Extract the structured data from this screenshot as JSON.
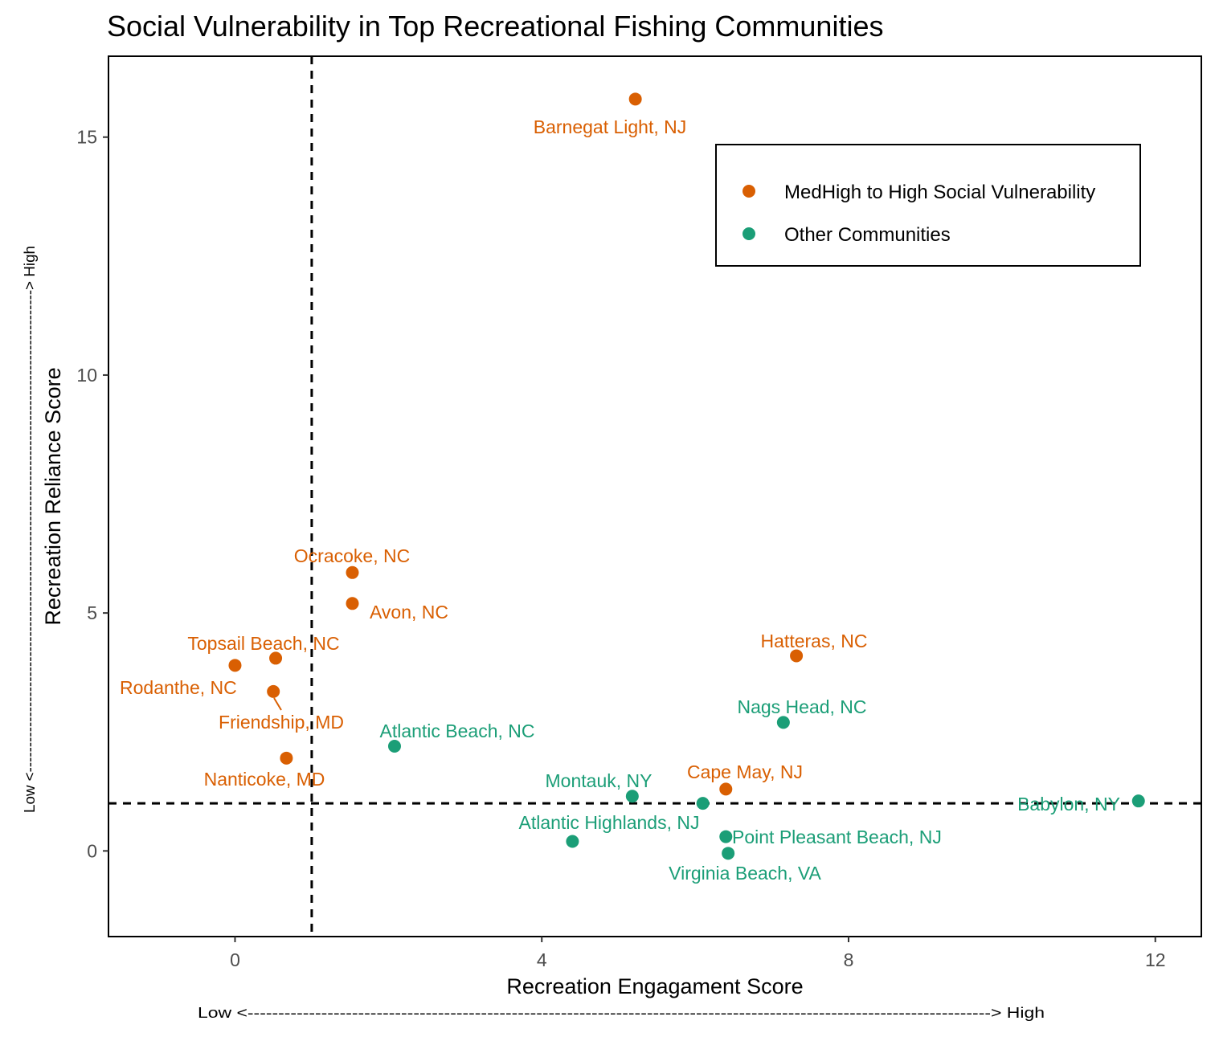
{
  "chart_data": {
    "type": "scatter",
    "title": "Social Vulnerability in Top Recreational Fishing Communities",
    "xlabel": "Recreation Engagament Score",
    "ylabel": "Recreation Reliance Score",
    "x_direction_note": "Low <-------------------------------------------------------------------------------------------------------------------------> High",
    "y_direction_note": "Low <------------------------------------------------------------------------------------------------> High",
    "xlim": [
      -1.65,
      12.6
    ],
    "ylim": [
      -1.8,
      16.7
    ],
    "x_ticks": [
      0,
      4,
      8,
      12
    ],
    "y_ticks": [
      0,
      5,
      10,
      15
    ],
    "x_tick_labels": [
      "0",
      "4",
      "8",
      "12"
    ],
    "y_tick_labels": [
      "0",
      "5",
      "10",
      "15"
    ],
    "grid": false,
    "reference_lines": {
      "x": 1,
      "y": 1,
      "style": "dashed"
    },
    "legend_position": "top-right",
    "colors": {
      "high_vulnerability": "#d95f02",
      "other": "#1b9e77"
    },
    "series": [
      {
        "name": "MedHigh to High Social Vulnerability",
        "color": "#d95f02",
        "points": [
          {
            "label": "Barnegat Light, NJ",
            "x": 5.22,
            "y": 15.8
          },
          {
            "label": "Ocracoke, NC",
            "x": 1.53,
            "y": 5.85
          },
          {
            "label": "Avon, NC",
            "x": 1.53,
            "y": 5.2
          },
          {
            "label": "Topsail Beach, NC",
            "x": 0.53,
            "y": 4.05
          },
          {
            "label": "Rodanthe, NC",
            "x": 0.0,
            "y": 3.9
          },
          {
            "label": "Friendship, MD",
            "x": 0.5,
            "y": 3.35
          },
          {
            "label": "Nanticoke, MD",
            "x": 0.67,
            "y": 1.95
          },
          {
            "label": "Hatteras, NC",
            "x": 7.32,
            "y": 4.1
          },
          {
            "label": "Cape May, NJ",
            "x": 6.4,
            "y": 1.3
          }
        ]
      },
      {
        "name": "Other Communities",
        "color": "#1b9e77",
        "points": [
          {
            "label": "Nags Head, NC",
            "x": 7.15,
            "y": 2.7
          },
          {
            "label": "Atlantic Beach, NC",
            "x": 2.08,
            "y": 2.2
          },
          {
            "label": "Montauk, NY",
            "x": 5.18,
            "y": 1.15
          },
          {
            "label": "",
            "x": 6.1,
            "y": 1.0
          },
          {
            "label": "Babylon, NY",
            "x": 11.78,
            "y": 1.05
          },
          {
            "label": "Atlantic Highlands, NJ",
            "x": 4.4,
            "y": 0.2
          },
          {
            "label": "Point Pleasant Beach, NJ",
            "x": 6.4,
            "y": 0.3
          },
          {
            "label": "Virginia Beach, VA",
            "x": 6.43,
            "y": -0.05
          }
        ]
      }
    ]
  }
}
